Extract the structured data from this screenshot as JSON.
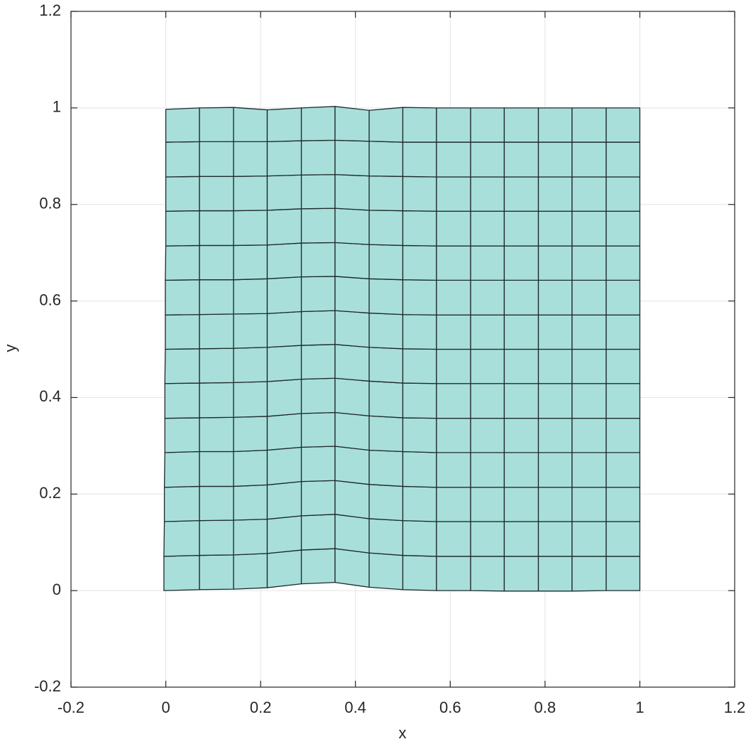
{
  "chart_data": {
    "type": "mesh",
    "xlabel": "x",
    "ylabel": "y",
    "xlim": [
      -0.2,
      1.2
    ],
    "ylim": [
      -0.2,
      1.2
    ],
    "xticks": [
      -0.2,
      0,
      0.2,
      0.4,
      0.6,
      0.8,
      1,
      1.2
    ],
    "yticks": [
      -0.2,
      0,
      0.2,
      0.4,
      0.6,
      0.8,
      1,
      1.2
    ],
    "grid": true,
    "color": "#a8dfdb",
    "x": [
      [
        -0.004,
        0.071,
        0.143,
        0.214,
        0.286,
        0.357,
        0.429,
        0.5,
        0.571,
        0.643,
        0.714,
        0.786,
        0.857,
        0.929,
        1
      ],
      [
        -0.004,
        0.071,
        0.143,
        0.214,
        0.286,
        0.357,
        0.429,
        0.5,
        0.571,
        0.643,
        0.714,
        0.786,
        0.857,
        0.929,
        1
      ],
      [
        -0.003,
        0.071,
        0.143,
        0.214,
        0.286,
        0.357,
        0.429,
        0.5,
        0.571,
        0.643,
        0.714,
        0.786,
        0.857,
        0.929,
        1
      ],
      [
        -0.003,
        0.071,
        0.143,
        0.214,
        0.286,
        0.357,
        0.429,
        0.5,
        0.571,
        0.643,
        0.714,
        0.786,
        0.857,
        0.929,
        1
      ],
      [
        -0.002,
        0.071,
        0.143,
        0.214,
        0.286,
        0.357,
        0.429,
        0.5,
        0.571,
        0.643,
        0.714,
        0.786,
        0.857,
        0.929,
        1
      ],
      [
        -0.002,
        0.071,
        0.143,
        0.214,
        0.286,
        0.357,
        0.429,
        0.5,
        0.571,
        0.643,
        0.714,
        0.786,
        0.857,
        0.929,
        1
      ],
      [
        -0.002,
        0.071,
        0.143,
        0.214,
        0.286,
        0.357,
        0.429,
        0.5,
        0.571,
        0.643,
        0.714,
        0.786,
        0.857,
        0.929,
        1
      ],
      [
        -0.001,
        0.071,
        0.143,
        0.214,
        0.286,
        0.357,
        0.429,
        0.5,
        0.571,
        0.643,
        0.714,
        0.786,
        0.857,
        0.929,
        1
      ],
      [
        -0.001,
        0.071,
        0.143,
        0.214,
        0.286,
        0.357,
        0.429,
        0.5,
        0.571,
        0.643,
        0.714,
        0.786,
        0.857,
        0.929,
        1
      ],
      [
        -0.001,
        0.071,
        0.143,
        0.214,
        0.286,
        0.357,
        0.429,
        0.5,
        0.571,
        0.643,
        0.714,
        0.786,
        0.857,
        0.929,
        1
      ],
      [
        0,
        0.071,
        0.143,
        0.214,
        0.286,
        0.357,
        0.429,
        0.5,
        0.571,
        0.643,
        0.714,
        0.786,
        0.857,
        0.929,
        1
      ],
      [
        0,
        0.071,
        0.143,
        0.214,
        0.286,
        0.357,
        0.429,
        0.5,
        0.571,
        0.643,
        0.714,
        0.786,
        0.857,
        0.929,
        1
      ],
      [
        0,
        0.071,
        0.143,
        0.214,
        0.286,
        0.357,
        0.429,
        0.5,
        0.571,
        0.643,
        0.714,
        0.786,
        0.857,
        0.929,
        1
      ],
      [
        0,
        0.071,
        0.143,
        0.214,
        0.286,
        0.357,
        0.429,
        0.5,
        0.571,
        0.643,
        0.714,
        0.786,
        0.857,
        0.929,
        1
      ],
      [
        0,
        0.071,
        0.143,
        0.214,
        0.286,
        0.357,
        0.429,
        0.5,
        0.571,
        0.643,
        0.714,
        0.786,
        0.857,
        0.929,
        1
      ]
    ],
    "y": [
      [
        0,
        0.002,
        0.003,
        0.006,
        0.014,
        0.017,
        0.007,
        0.002,
        0,
        0,
        -0.001,
        -0.001,
        -0.001,
        0,
        0
      ],
      [
        0.071,
        0.073,
        0.074,
        0.077,
        0.084,
        0.087,
        0.078,
        0.073,
        0.071,
        0.071,
        0.071,
        0.071,
        0.071,
        0.071,
        0.071
      ],
      [
        0.143,
        0.145,
        0.146,
        0.148,
        0.155,
        0.158,
        0.149,
        0.145,
        0.143,
        0.143,
        0.143,
        0.143,
        0.143,
        0.143,
        0.143
      ],
      [
        0.214,
        0.216,
        0.216,
        0.219,
        0.226,
        0.228,
        0.22,
        0.216,
        0.214,
        0.214,
        0.214,
        0.214,
        0.214,
        0.214,
        0.214
      ],
      [
        0.286,
        0.288,
        0.288,
        0.291,
        0.297,
        0.299,
        0.291,
        0.288,
        0.286,
        0.286,
        0.286,
        0.286,
        0.286,
        0.286,
        0.286
      ],
      [
        0.357,
        0.358,
        0.359,
        0.361,
        0.367,
        0.369,
        0.362,
        0.358,
        0.357,
        0.357,
        0.357,
        0.357,
        0.357,
        0.357,
        0.357
      ],
      [
        0.429,
        0.43,
        0.431,
        0.433,
        0.438,
        0.44,
        0.434,
        0.43,
        0.429,
        0.429,
        0.429,
        0.429,
        0.429,
        0.429,
        0.429
      ],
      [
        0.5,
        0.501,
        0.502,
        0.504,
        0.508,
        0.51,
        0.504,
        0.501,
        0.5,
        0.5,
        0.5,
        0.5,
        0.5,
        0.5,
        0.5
      ],
      [
        0.571,
        0.572,
        0.573,
        0.574,
        0.578,
        0.58,
        0.575,
        0.572,
        0.571,
        0.571,
        0.571,
        0.571,
        0.571,
        0.571,
        0.571
      ],
      [
        0.643,
        0.644,
        0.644,
        0.646,
        0.65,
        0.651,
        0.646,
        0.644,
        0.643,
        0.643,
        0.643,
        0.643,
        0.643,
        0.643,
        0.643
      ],
      [
        0.714,
        0.715,
        0.715,
        0.716,
        0.72,
        0.721,
        0.717,
        0.715,
        0.714,
        0.714,
        0.714,
        0.714,
        0.714,
        0.714,
        0.714
      ],
      [
        0.786,
        0.787,
        0.787,
        0.788,
        0.791,
        0.792,
        0.788,
        0.787,
        0.786,
        0.786,
        0.786,
        0.786,
        0.786,
        0.786,
        0.786
      ],
      [
        0.857,
        0.858,
        0.858,
        0.859,
        0.861,
        0.862,
        0.859,
        0.858,
        0.857,
        0.857,
        0.857,
        0.857,
        0.857,
        0.857,
        0.857
      ],
      [
        0.929,
        0.93,
        0.93,
        0.93,
        0.932,
        0.933,
        0.931,
        0.929,
        0.929,
        0.929,
        0.929,
        0.929,
        0.929,
        0.929,
        0.929
      ],
      [
        0.997,
        1,
        1.001,
        0.996,
        1,
        1.003,
        0.995,
        1.001,
        1,
        1,
        1,
        1,
        1,
        1,
        1
      ]
    ]
  }
}
